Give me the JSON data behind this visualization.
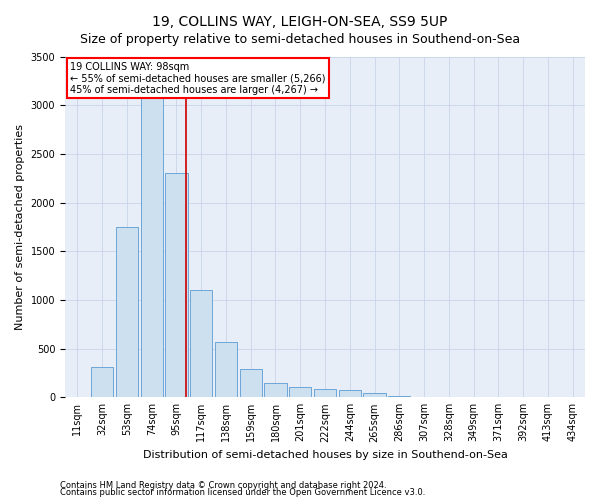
{
  "title": "19, COLLINS WAY, LEIGH-ON-SEA, SS9 5UP",
  "subtitle": "Size of property relative to semi-detached houses in Southend-on-Sea",
  "xlabel": "Distribution of semi-detached houses by size in Southend-on-Sea",
  "ylabel": "Number of semi-detached properties",
  "footer1": "Contains HM Land Registry data © Crown copyright and database right 2024.",
  "footer2": "Contains public sector information licensed under the Open Government Licence v3.0.",
  "annotation_title": "19 COLLINS WAY: 98sqm",
  "annotation_line2": "← 55% of semi-detached houses are smaller (5,266)",
  "annotation_line3": "45% of semi-detached houses are larger (4,267) →",
  "property_size": 98,
  "bar_color": "#cce0f0",
  "bar_edge_color": "#5b9bd5",
  "vline_color": "#cc0000",
  "grid_color": "#c8d4e8",
  "background_color": "#e8eef8",
  "ylim": [
    0,
    3500
  ],
  "yticks": [
    0,
    500,
    1000,
    1500,
    2000,
    2500,
    3000,
    3500
  ],
  "bin_labels": [
    "11sqm",
    "32sqm",
    "53sqm",
    "74sqm",
    "95sqm",
    "117sqm",
    "138sqm",
    "159sqm",
    "180sqm",
    "201sqm",
    "222sqm",
    "244sqm",
    "265sqm",
    "286sqm",
    "307sqm",
    "328sqm",
    "349sqm",
    "371sqm",
    "392sqm",
    "413sqm",
    "434sqm"
  ],
  "bin_centers": [
    0,
    1,
    2,
    3,
    4,
    5,
    6,
    7,
    8,
    9,
    10,
    11,
    12,
    13,
    14,
    15,
    16,
    17,
    18,
    19,
    20
  ],
  "bar_heights": [
    5,
    310,
    1750,
    3100,
    2300,
    1100,
    570,
    290,
    150,
    110,
    85,
    75,
    45,
    12,
    5,
    3,
    2,
    1,
    0,
    0,
    0
  ],
  "vline_pos": 4.4,
  "title_fontsize": 10,
  "subtitle_fontsize": 9,
  "ylabel_fontsize": 8,
  "xlabel_fontsize": 8,
  "tick_fontsize": 7,
  "annot_fontsize": 7,
  "footer_fontsize": 6
}
